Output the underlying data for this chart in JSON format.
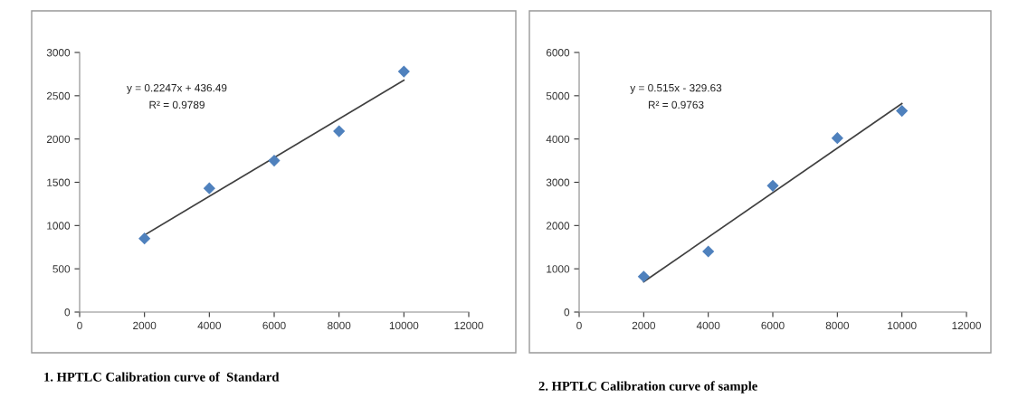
{
  "chart_data": [
    {
      "type": "scatter",
      "title": "1. HPTLC Calibration curve of  Standard",
      "xlim": [
        0,
        12000
      ],
      "xticks": [
        0,
        2000,
        4000,
        6000,
        8000,
        10000,
        12000
      ],
      "ylim": [
        0,
        3000
      ],
      "yticks": [
        0,
        500,
        1000,
        1500,
        2000,
        2500,
        3000
      ],
      "grid": false,
      "legend": false,
      "annotations": [
        "y = 0.2247x + 436.49",
        "R² = 0.9789"
      ],
      "series": [
        {
          "marker": "diamond",
          "color": "#4f81bd",
          "x": [
            2000,
            4000,
            6000,
            8000,
            10000
          ],
          "values": [
            850,
            1430,
            1750,
            2090,
            2780
          ]
        },
        {
          "type": "line",
          "marker": "none",
          "color": "#404040",
          "x": [
            2000,
            10000
          ],
          "values": [
            890,
            2680
          ]
        }
      ]
    },
    {
      "type": "scatter",
      "title": "2. HPTLC Calibration curve of sample",
      "xlim": [
        0,
        12000
      ],
      "xticks": [
        0,
        2000,
        4000,
        6000,
        8000,
        10000,
        12000
      ],
      "ylim": [
        0,
        6000
      ],
      "yticks": [
        0,
        1000,
        2000,
        3000,
        4000,
        5000,
        6000
      ],
      "grid": false,
      "legend": false,
      "annotations": [
        "y = 0.515x - 329.63",
        "R² = 0.9763"
      ],
      "series": [
        {
          "marker": "diamond",
          "color": "#4f81bd",
          "x": [
            2000,
            4000,
            6000,
            8000,
            10000
          ],
          "values": [
            820,
            1400,
            2920,
            4020,
            4650
          ]
        },
        {
          "type": "line",
          "marker": "none",
          "color": "#404040",
          "x": [
            2000,
            10000
          ],
          "values": [
            700,
            4820
          ]
        }
      ]
    }
  ]
}
